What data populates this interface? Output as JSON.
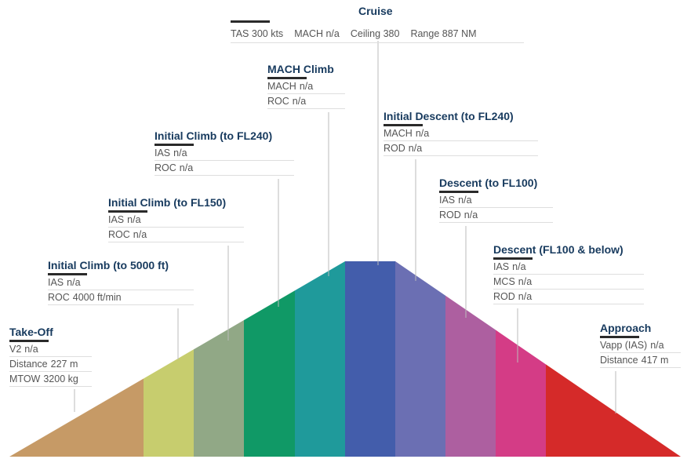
{
  "cruise": {
    "title": "Cruise",
    "stats": [
      {
        "label": "TAS",
        "value": "300 kts"
      },
      {
        "label": "MACH",
        "value": "n/a"
      },
      {
        "label": "Ceiling",
        "value": "380"
      },
      {
        "label": "Range",
        "value": "887 NM"
      }
    ]
  },
  "phases": [
    {
      "title": "Take-Off",
      "rows": [
        {
          "label": "V2",
          "value": "n/a"
        },
        {
          "label": "Distance",
          "value": "227 m"
        },
        {
          "label": "MTOW",
          "value": "3200 kg"
        }
      ]
    },
    {
      "title": "Initial Climb (to 5000 ft)",
      "rows": [
        {
          "label": "IAS",
          "value": "n/a"
        },
        {
          "label": "ROC",
          "value": "4000 ft/min"
        }
      ]
    },
    {
      "title": "Initial Climb (to FL150)",
      "rows": [
        {
          "label": "IAS",
          "value": "n/a"
        },
        {
          "label": "ROC",
          "value": "n/a"
        }
      ]
    },
    {
      "title": "Initial Climb (to FL240)",
      "rows": [
        {
          "label": "IAS",
          "value": "n/a"
        },
        {
          "label": "ROC",
          "value": "n/a"
        }
      ]
    },
    {
      "title": "MACH Climb",
      "rows": [
        {
          "label": "MACH",
          "value": "n/a"
        },
        {
          "label": "ROC",
          "value": "n/a"
        }
      ]
    },
    {
      "title": "Initial Descent (to FL240)",
      "rows": [
        {
          "label": "MACH",
          "value": "n/a"
        },
        {
          "label": "ROD",
          "value": "n/a"
        }
      ]
    },
    {
      "title": "Descent (to FL100)",
      "rows": [
        {
          "label": "IAS",
          "value": "n/a"
        },
        {
          "label": "ROD",
          "value": "n/a"
        }
      ]
    },
    {
      "title": "Descent (FL100 & below)",
      "rows": [
        {
          "label": "IAS",
          "value": "n/a"
        },
        {
          "label": "MCS",
          "value": "n/a"
        },
        {
          "label": "ROD",
          "value": "n/a"
        }
      ]
    },
    {
      "title": "Approach",
      "rows": [
        {
          "label": "Vapp (IAS)",
          "value": "n/a"
        },
        {
          "label": "Distance",
          "value": "417 m"
        }
      ]
    }
  ],
  "segment_colors": [
    "#c69a66",
    "#c7cd6e",
    "#91a886",
    "#109966",
    "#1f9a9b",
    "#435dab",
    "#6b6fb3",
    "#ad5fa0",
    "#d43c86",
    "#d52a29"
  ],
  "colors": {
    "title": "#173a5e",
    "text": "#555555",
    "leader": "#bbbbbb"
  }
}
